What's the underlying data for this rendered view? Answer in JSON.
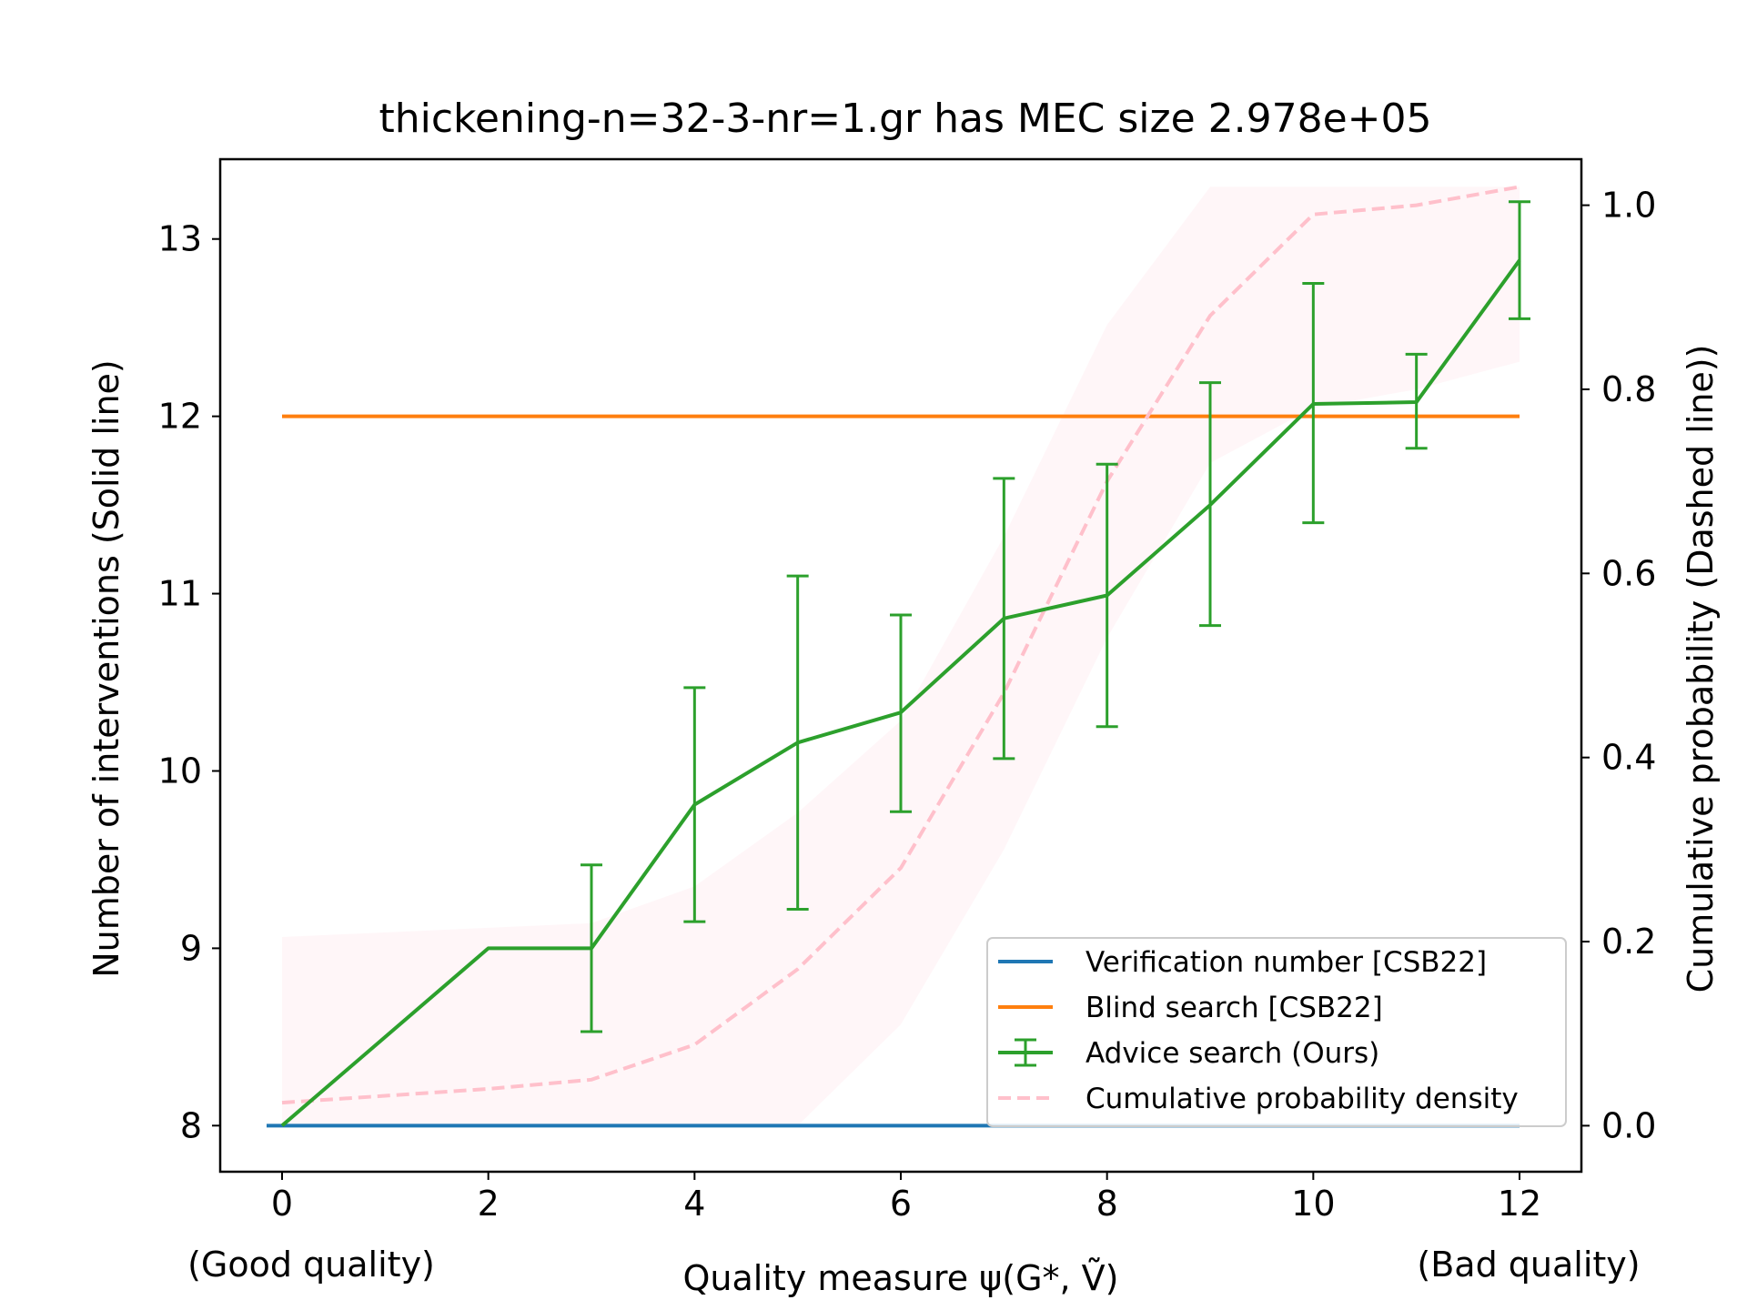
{
  "chart_data": {
    "type": "line",
    "title": "thickening-n=32-3-nr=1.gr has MEC size 2.978e+05",
    "xlabel": "Quality measure ψ(G*, Ṽ)",
    "xlabel_left_note": "(Good quality)",
    "xlabel_right_note": "(Bad quality)",
    "ylabel_left": "Number of interventions (Solid line)",
    "ylabel_right": "Cumulative probability (Dashed line))",
    "xlim": [
      -0.6,
      12.6
    ],
    "ylim_left": [
      7.74,
      13.45
    ],
    "ylim_right": [
      -0.05,
      1.05
    ],
    "x_ticks": [
      0,
      2,
      4,
      6,
      8,
      10,
      12
    ],
    "y_left_ticks": [
      8,
      9,
      10,
      11,
      12,
      13
    ],
    "y_right_ticks": [
      "0.0",
      "0.2",
      "0.4",
      "0.6",
      "0.8",
      "1.0"
    ],
    "grid": false,
    "legend_position": "lower-right",
    "series": [
      {
        "name": "Verification number [CSB22]",
        "color": "#1f77b4",
        "axis": "left",
        "x": [
          -0.15,
          12
        ],
        "y": [
          8,
          8
        ]
      },
      {
        "name": "Blind search [CSB22]",
        "color": "#ff7f0e",
        "axis": "left",
        "x": [
          0,
          12
        ],
        "y": [
          12,
          12
        ]
      },
      {
        "name": "Advice search (Ours)",
        "color": "#2ca02c",
        "axis": "left",
        "x": [
          0,
          2,
          3,
          4,
          5,
          6,
          7,
          8,
          9,
          10,
          11,
          12
        ],
        "y": [
          8,
          9,
          9,
          9.81,
          10.16,
          10.33,
          10.86,
          10.99,
          11.5,
          12.07,
          12.08,
          12.88
        ],
        "err_low": [
          null,
          null,
          8.53,
          9.15,
          9.22,
          9.77,
          10.07,
          10.25,
          10.82,
          11.4,
          11.82,
          12.55
        ],
        "err_high": [
          null,
          null,
          9.47,
          10.47,
          11.1,
          10.88,
          11.65,
          11.73,
          12.19,
          12.75,
          12.35,
          13.21
        ]
      },
      {
        "name": "Cumulative probability density",
        "color": "#ffc0cb",
        "axis": "right",
        "dashed": true,
        "x": [
          0,
          2,
          3,
          4,
          5,
          6,
          7,
          8,
          9,
          10,
          11,
          12
        ],
        "y": [
          0.025,
          0.04,
          0.05,
          0.088,
          0.17,
          0.28,
          0.47,
          0.7,
          0.88,
          0.99,
          1.0,
          1.02
        ],
        "band_low": [
          0.0,
          0.0,
          0.0,
          0.0,
          0.0,
          0.11,
          0.3,
          0.53,
          0.72,
          0.78,
          0.8,
          0.83
        ],
        "band_high": [
          0.205,
          0.215,
          0.22,
          0.26,
          0.34,
          0.44,
          0.64,
          0.87,
          1.02,
          1.02,
          1.02,
          1.02
        ]
      }
    ]
  }
}
